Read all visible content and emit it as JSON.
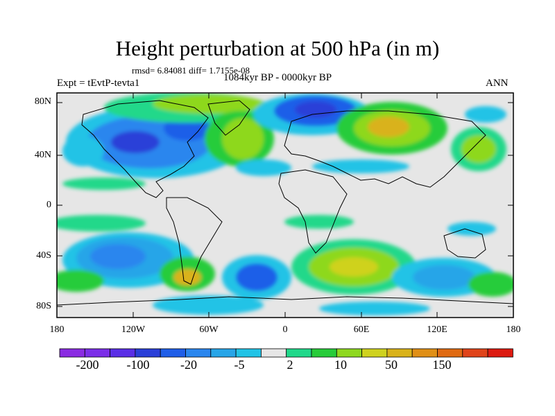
{
  "map": {
    "title": "Height perturbation at 500 hPa (in m)",
    "stats": "rmsd= 6.84081 diff= 1.7155e-08",
    "experiment": "Expt = tEvtP-tevta1",
    "period": "1084kyr BP - 0000kyr BP",
    "season": "ANN",
    "lat_ticks": [
      "80N",
      "40N",
      "0",
      "40S",
      "80S"
    ],
    "lon_ticks": [
      "180",
      "120W",
      "60W",
      "0",
      "60E",
      "120E",
      "180"
    ],
    "colorbar": {
      "colors": [
        "#8a2be2",
        "#7b2ee8",
        "#5a2ee6",
        "#2a3fd8",
        "#1f5ee8",
        "#2a86ee",
        "#27a5e8",
        "#21c3e6",
        "#e6e6e6",
        "#20d88a",
        "#27cc3a",
        "#8ed81f",
        "#cfd21f",
        "#d9b21a",
        "#e08f16",
        "#e06a12",
        "#e0441a",
        "#dc1a10"
      ],
      "labels": [
        "-200",
        "-100",
        "-20",
        "-5",
        "2",
        "10",
        "50",
        "150"
      ]
    }
  }
}
